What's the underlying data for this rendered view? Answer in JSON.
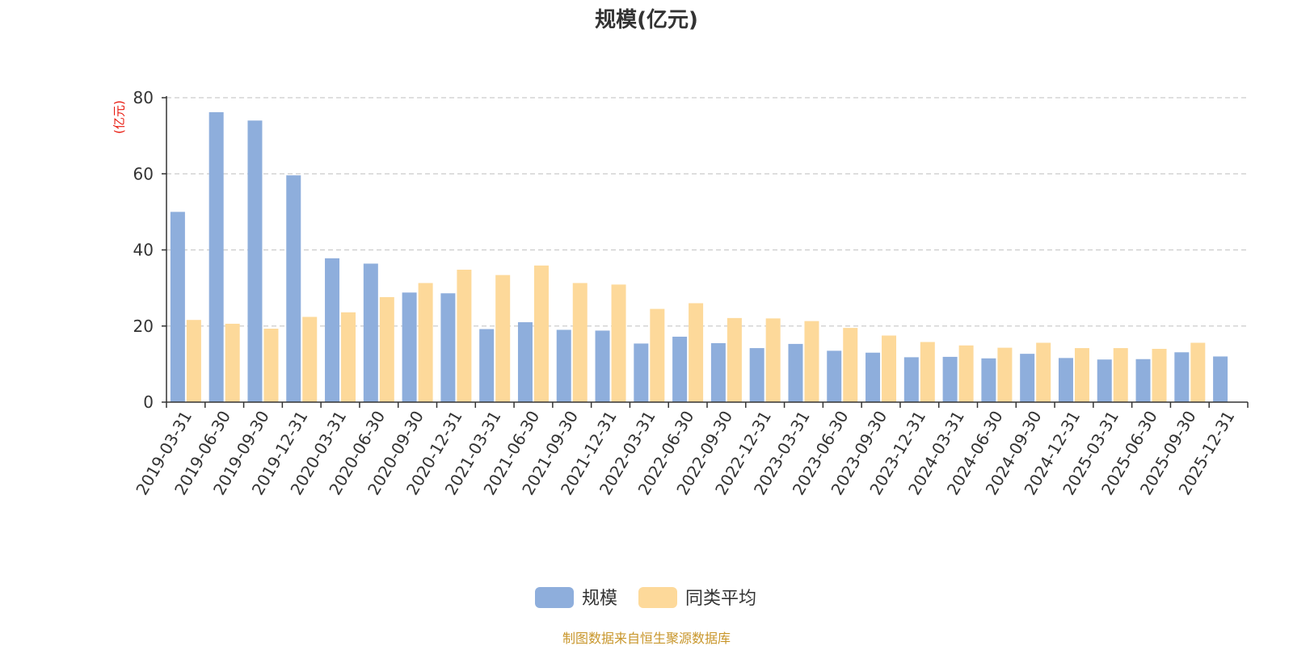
{
  "chart_data": {
    "type": "bar",
    "title": "规模(亿元)",
    "ylabel": "(亿元)",
    "ylim": [
      0,
      80
    ],
    "yticks": [
      0,
      20,
      40,
      60,
      80
    ],
    "grid": true,
    "legend_position": "bottom-center",
    "categories": [
      "2019-03-31",
      "2019-06-30",
      "2019-09-30",
      "2019-12-31",
      "2020-03-31",
      "2020-06-30",
      "2020-09-30",
      "2020-12-31",
      "2021-03-31",
      "2021-06-30",
      "2021-09-30",
      "2021-12-31",
      "2022-03-31",
      "2022-06-30",
      "2022-09-30",
      "2022-12-31",
      "2023-03-31",
      "2023-06-30",
      "2023-09-30",
      "2023-12-31",
      "2024-03-31",
      "2024-06-30",
      "2024-09-30",
      "2024-12-31",
      "2025-03-31",
      "2025-06-30",
      "2025-09-30",
      "2025-12-31"
    ],
    "series": [
      {
        "name": "规模",
        "color": "#8eaedc",
        "values": [
          50.0,
          76.2,
          74.0,
          59.6,
          37.8,
          36.4,
          28.8,
          28.6,
          19.2,
          21.0,
          19.0,
          18.8,
          15.4,
          17.2,
          15.5,
          14.2,
          15.3,
          13.5,
          13.0,
          11.8,
          11.9,
          11.5,
          12.7,
          11.6,
          11.2,
          11.3,
          13.1,
          12.0
        ]
      },
      {
        "name": "同类平均",
        "color": "#fdd99a",
        "values": [
          21.6,
          20.6,
          19.3,
          22.4,
          23.6,
          27.6,
          31.3,
          34.8,
          33.4,
          35.9,
          31.3,
          30.9,
          24.5,
          26.0,
          22.1,
          22.0,
          21.3,
          19.5,
          17.5,
          15.8,
          14.9,
          14.3,
          15.6,
          14.2,
          14.2,
          14.0,
          15.6,
          null
        ]
      }
    ],
    "source_note": "制图数据来自恒生聚源数据库"
  }
}
